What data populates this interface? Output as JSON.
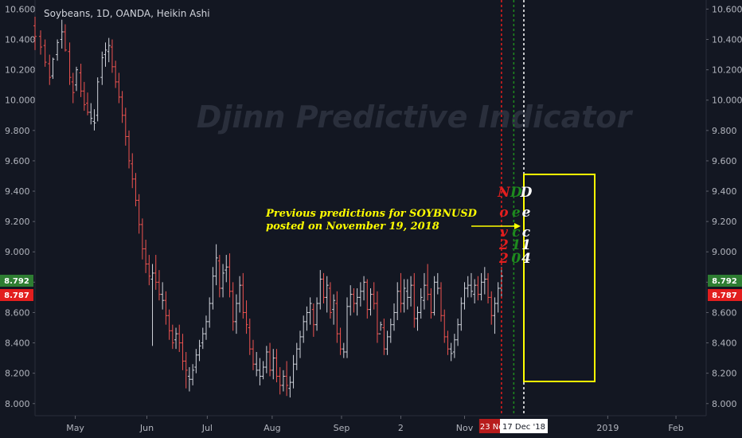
{
  "chart_data": {
    "type": "candlestick",
    "title": "Soybeans, 1D, OANDA, Heikin Ashi",
    "watermark": "Djinn Predictive Indicator",
    "ylim": [
      7.92,
      10.66
    ],
    "y_ticks": [
      "10.600",
      "10.400",
      "10.200",
      "10.000",
      "9.800",
      "9.600",
      "9.400",
      "9.200",
      "9.000",
      "8.800",
      "8.600",
      "8.400",
      "8.200",
      "8.000"
    ],
    "x_ticks": [
      "May",
      "Jun",
      "Jul",
      "Aug",
      "Sep",
      "2",
      "Nov",
      "2019",
      "Feb"
    ],
    "x_tick_index": [
      36,
      100,
      154,
      212,
      274,
      327,
      384,
      512,
      573
    ],
    "bar_count": 600,
    "current_price": {
      "upper": "8.792",
      "lower": "8.787"
    },
    "ohlc": [
      [
        0,
        10.49,
        10.55,
        10.33,
        10.42
      ],
      [
        5,
        10.42,
        10.46,
        10.3,
        10.35
      ],
      [
        9,
        10.36,
        10.4,
        10.22,
        10.25
      ],
      [
        13,
        10.24,
        10.3,
        10.1,
        10.15
      ],
      [
        16,
        10.16,
        10.28,
        10.14,
        10.27
      ],
      [
        20,
        10.3,
        10.4,
        10.26,
        10.38
      ],
      [
        24,
        10.4,
        10.53,
        10.34,
        10.45
      ],
      [
        27,
        10.45,
        10.5,
        10.32,
        10.33
      ],
      [
        31,
        10.32,
        10.38,
        10.1,
        10.15
      ],
      [
        34,
        10.12,
        10.18,
        9.98,
        10.05
      ],
      [
        37,
        10.1,
        10.22,
        10.06,
        10.2
      ],
      [
        41,
        10.18,
        10.24,
        10.02,
        10.06
      ],
      [
        44,
        10.06,
        10.12,
        9.93,
        9.97
      ],
      [
        47,
        9.98,
        10.05,
        9.9,
        9.92
      ],
      [
        50,
        9.92,
        9.98,
        9.84,
        9.88
      ],
      [
        53,
        9.86,
        9.94,
        9.8,
        9.85
      ],
      [
        56,
        9.9,
        10.15,
        9.86,
        10.12
      ],
      [
        60,
        10.15,
        10.32,
        10.1,
        10.28
      ],
      [
        63,
        10.3,
        10.38,
        10.22,
        10.33
      ],
      [
        66,
        10.32,
        10.41,
        10.25,
        10.36
      ],
      [
        69,
        10.35,
        10.4,
        10.18,
        10.22
      ],
      [
        72,
        10.22,
        10.26,
        10.08,
        10.12
      ],
      [
        75,
        10.12,
        10.18,
        9.98,
        10.02
      ],
      [
        78,
        10.02,
        10.06,
        9.85,
        9.9
      ],
      [
        81,
        9.9,
        9.95,
        9.7,
        9.76
      ],
      [
        84,
        9.76,
        9.8,
        9.55,
        9.6
      ],
      [
        87,
        9.58,
        9.65,
        9.42,
        9.48
      ],
      [
        90,
        9.48,
        9.52,
        9.3,
        9.34
      ],
      [
        93,
        9.34,
        9.38,
        9.12,
        9.18
      ],
      [
        96,
        9.18,
        9.22,
        8.95,
        9.02
      ],
      [
        99,
        9.02,
        9.08,
        8.86,
        8.92
      ],
      [
        102,
        8.92,
        8.98,
        8.78,
        8.84
      ],
      [
        105,
        8.82,
        8.92,
        8.38,
        8.86
      ],
      [
        108,
        8.86,
        8.98,
        8.75,
        8.8
      ],
      [
        111,
        8.8,
        8.88,
        8.68,
        8.72
      ],
      [
        114,
        8.72,
        8.8,
        8.62,
        8.68
      ],
      [
        117,
        8.68,
        8.74,
        8.52,
        8.58
      ],
      [
        120,
        8.58,
        8.62,
        8.42,
        8.48
      ],
      [
        123,
        8.48,
        8.52,
        8.36,
        8.4
      ],
      [
        126,
        8.42,
        8.5,
        8.36,
        8.46
      ],
      [
        129,
        8.46,
        8.52,
        8.34,
        8.4
      ],
      [
        132,
        8.4,
        8.46,
        8.22,
        8.28
      ],
      [
        135,
        8.28,
        8.34,
        8.1,
        8.22
      ],
      [
        138,
        8.18,
        8.24,
        8.08,
        8.16
      ],
      [
        141,
        8.16,
        8.26,
        8.12,
        8.22
      ],
      [
        144,
        8.24,
        8.36,
        8.2,
        8.32
      ],
      [
        147,
        8.32,
        8.42,
        8.28,
        8.38
      ],
      [
        150,
        8.4,
        8.5,
        8.36,
        8.46
      ],
      [
        153,
        8.46,
        8.58,
        8.42,
        8.54
      ],
      [
        156,
        8.54,
        8.7,
        8.5,
        8.66
      ],
      [
        159,
        8.66,
        8.9,
        8.62,
        8.84
      ],
      [
        162,
        8.84,
        9.05,
        8.78,
        8.96
      ],
      [
        165,
        8.94,
        8.98,
        8.7,
        8.76
      ],
      [
        168,
        8.76,
        8.92,
        8.7,
        8.86
      ],
      [
        171,
        8.88,
        8.98,
        8.8,
        8.9
      ],
      [
        174,
        8.9,
        8.99,
        8.7,
        8.74
      ],
      [
        177,
        8.74,
        8.8,
        8.48,
        8.54
      ],
      [
        180,
        8.54,
        8.72,
        8.46,
        8.66
      ],
      [
        183,
        8.66,
        8.84,
        8.6,
        8.78
      ],
      [
        186,
        8.78,
        8.86,
        8.56,
        8.6
      ],
      [
        189,
        8.6,
        8.68,
        8.46,
        8.52
      ],
      [
        192,
        8.5,
        8.56,
        8.32,
        8.36
      ],
      [
        195,
        8.36,
        8.42,
        8.22,
        8.26
      ],
      [
        198,
        8.26,
        8.34,
        8.18,
        8.22
      ],
      [
        201,
        8.22,
        8.3,
        8.12,
        8.18
      ],
      [
        204,
        8.18,
        8.28,
        8.16,
        8.24
      ],
      [
        207,
        8.24,
        8.38,
        8.2,
        8.34
      ],
      [
        210,
        8.34,
        8.4,
        8.18,
        8.22
      ],
      [
        213,
        8.22,
        8.36,
        8.16,
        8.3
      ],
      [
        216,
        8.3,
        8.36,
        8.14,
        8.18
      ],
      [
        219,
        8.18,
        8.24,
        8.06,
        8.12
      ],
      [
        222,
        8.12,
        8.22,
        8.08,
        8.18
      ],
      [
        225,
        8.18,
        8.28,
        8.05,
        8.12
      ],
      [
        228,
        8.1,
        8.18,
        8.04,
        8.14
      ],
      [
        231,
        8.14,
        8.32,
        8.1,
        8.26
      ],
      [
        234,
        8.26,
        8.4,
        8.22,
        8.36
      ],
      [
        237,
        8.36,
        8.48,
        8.3,
        8.44
      ],
      [
        240,
        8.44,
        8.58,
        8.4,
        8.54
      ],
      [
        243,
        8.54,
        8.64,
        8.48,
        8.6
      ],
      [
        246,
        8.6,
        8.7,
        8.52,
        8.66
      ],
      [
        249,
        8.62,
        8.66,
        8.44,
        8.52
      ],
      [
        252,
        8.52,
        8.7,
        8.48,
        8.66
      ],
      [
        255,
        8.66,
        8.88,
        8.62,
        8.82
      ],
      [
        258,
        8.82,
        8.86,
        8.66,
        8.7
      ],
      [
        261,
        8.7,
        8.84,
        8.6,
        8.78
      ],
      [
        264,
        8.76,
        8.8,
        8.56,
        8.6
      ],
      [
        267,
        8.62,
        8.72,
        8.52,
        8.68
      ],
      [
        270,
        8.66,
        8.74,
        8.4,
        8.46
      ],
      [
        273,
        8.46,
        8.5,
        8.32,
        8.36
      ],
      [
        276,
        8.36,
        8.4,
        8.3,
        8.34
      ],
      [
        279,
        8.34,
        8.7,
        8.3,
        8.64
      ],
      [
        282,
        8.64,
        8.78,
        8.58,
        8.72
      ],
      [
        285,
        8.72,
        8.76,
        8.6,
        8.66
      ],
      [
        288,
        8.66,
        8.76,
        8.58,
        8.7
      ],
      [
        291,
        8.7,
        8.8,
        8.64,
        8.74
      ],
      [
        294,
        8.74,
        8.84,
        8.68,
        8.8
      ],
      [
        297,
        8.8,
        8.82,
        8.56,
        8.62
      ],
      [
        300,
        8.62,
        8.76,
        8.58,
        8.72
      ],
      [
        303,
        8.72,
        8.8,
        8.62,
        8.66
      ],
      [
        306,
        8.66,
        8.74,
        8.4,
        8.46
      ],
      [
        309,
        8.46,
        8.54,
        8.48,
        8.52
      ],
      [
        312,
        8.5,
        8.56,
        8.32,
        8.36
      ],
      [
        315,
        8.36,
        8.48,
        8.32,
        8.44
      ],
      [
        318,
        8.44,
        8.56,
        8.4,
        8.52
      ],
      [
        321,
        8.52,
        8.66,
        8.48,
        8.6
      ],
      [
        324,
        8.6,
        8.8,
        8.55,
        8.74
      ],
      [
        327,
        8.74,
        8.86,
        8.6,
        8.66
      ],
      [
        330,
        8.66,
        8.82,
        8.6,
        8.76
      ],
      [
        333,
        8.74,
        8.82,
        8.62,
        8.7
      ],
      [
        336,
        8.7,
        8.84,
        8.64,
        8.78
      ],
      [
        339,
        8.78,
        8.86,
        8.5,
        8.56
      ],
      [
        342,
        8.56,
        8.64,
        8.48,
        8.6
      ],
      [
        345,
        8.6,
        8.76,
        8.56,
        8.7
      ],
      [
        348,
        8.68,
        8.86,
        8.62,
        8.78
      ],
      [
        351,
        8.78,
        8.92,
        8.68,
        8.72
      ],
      [
        354,
        8.72,
        8.76,
        8.56,
        8.6
      ],
      [
        357,
        8.6,
        8.84,
        8.58,
        8.8
      ],
      [
        360,
        8.8,
        8.86,
        8.72,
        8.76
      ],
      [
        363,
        8.76,
        8.8,
        8.54,
        8.58
      ],
      [
        366,
        8.58,
        8.62,
        8.4,
        8.44
      ],
      [
        369,
        8.44,
        8.48,
        8.32,
        8.36
      ],
      [
        372,
        8.36,
        8.4,
        8.28,
        8.33
      ],
      [
        375,
        8.34,
        8.46,
        8.3,
        8.42
      ],
      [
        378,
        8.42,
        8.56,
        8.38,
        8.52
      ],
      [
        381,
        8.52,
        8.7,
        8.48,
        8.66
      ],
      [
        384,
        8.66,
        8.8,
        8.62,
        8.76
      ],
      [
        387,
        8.76,
        8.84,
        8.7,
        8.78
      ],
      [
        390,
        8.78,
        8.86,
        8.7,
        8.74
      ],
      [
        393,
        8.72,
        8.82,
        8.66,
        8.78
      ],
      [
        396,
        8.78,
        8.84,
        8.68,
        8.72
      ],
      [
        399,
        8.72,
        8.86,
        8.68,
        8.8
      ],
      [
        402,
        8.8,
        8.9,
        8.72,
        8.82
      ],
      [
        405,
        8.82,
        8.86,
        8.66,
        8.7
      ],
      [
        408,
        8.7,
        8.74,
        8.52,
        8.58
      ],
      [
        411,
        8.58,
        8.7,
        8.46,
        8.66
      ],
      [
        414,
        8.66,
        8.8,
        8.6,
        8.76
      ],
      [
        417,
        8.76,
        8.9,
        8.7,
        8.84
      ]
    ],
    "series": [
      {
        "name": "Nov 22",
        "x_index": 417,
        "date_label": "23 Nov '18",
        "color": "#e21e1e",
        "letters": [
          "N",
          "o",
          "v",
          "2",
          "2"
        ]
      },
      {
        "name": "Dec 10",
        "x_index": 428,
        "date_label": "",
        "color": "#1e8a1e",
        "letters": [
          "D",
          "e",
          "c",
          "1",
          "0"
        ]
      },
      {
        "name": "Dec 14",
        "x_index": 437,
        "date_label": "17 Dec '18",
        "color": "#ffffff",
        "letters": [
          "D",
          "e",
          "c",
          "1",
          "4"
        ]
      }
    ],
    "annotation": {
      "line1": "Previous predictions for SOYBNUSD",
      "line2": "posted on November 19, 2018"
    },
    "highlight_box": {
      "color": "#ffff00"
    },
    "colors": {
      "up": "#26a69a",
      "down": "#ef5350",
      "neutral": "#d1d4dc",
      "grid": "#1e222d",
      "bg": "#131722"
    },
    "legend": "none",
    "grid": false
  }
}
